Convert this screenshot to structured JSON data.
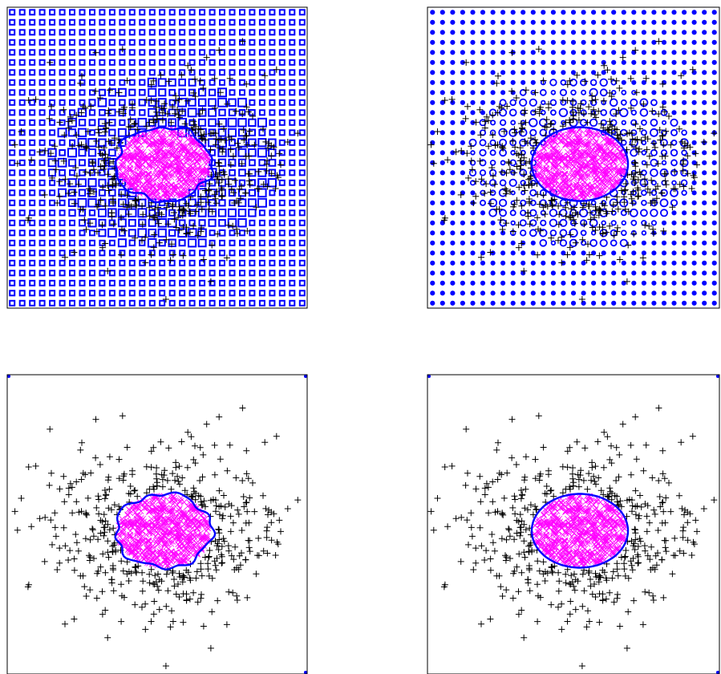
{
  "colors": {
    "frame": "#000000",
    "inner_points": "#ff00ff",
    "outer_points": "#000000",
    "boundary": "#0000ff",
    "grid_markers": "#0000ff",
    "background": "#ffffff"
  },
  "chart_data": [
    {
      "type": "scatter",
      "panel": "top-left",
      "title": "",
      "xlabel": "",
      "ylabel": "",
      "grid": false,
      "marker_grid": {
        "shape": "square",
        "rows": 30,
        "cols": 30,
        "density": "dense"
      },
      "boundary_shape": "irregular-ellipse",
      "series": [
        {
          "marker": "x",
          "color": "#ff00ff",
          "count": 600
        },
        {
          "marker": "+",
          "color": "#000000",
          "count": 420
        }
      ]
    },
    {
      "type": "scatter",
      "panel": "top-right",
      "title": "",
      "xlabel": "",
      "ylabel": "",
      "grid": false,
      "marker_grid": {
        "shape": "circle",
        "rows": 30,
        "cols": 29,
        "density": "sparse"
      },
      "boundary_shape": "ellipse",
      "series": [
        {
          "marker": "x",
          "color": "#ff00ff",
          "count": 600
        },
        {
          "marker": "+",
          "color": "#000000",
          "count": 420
        }
      ]
    },
    {
      "type": "scatter",
      "panel": "bottom-left",
      "title": "",
      "xlabel": "",
      "ylabel": "",
      "grid": false,
      "boundary_shape": "irregular-ellipse",
      "series": [
        {
          "marker": "x",
          "color": "#ff00ff",
          "count": 600
        },
        {
          "marker": "+",
          "color": "#000000",
          "count": 420
        }
      ]
    },
    {
      "type": "scatter",
      "panel": "bottom-right",
      "title": "",
      "xlabel": "",
      "ylabel": "",
      "grid": false,
      "boundary_shape": "ellipse",
      "series": [
        {
          "marker": "x",
          "color": "#ff00ff",
          "count": 600
        },
        {
          "marker": "+",
          "color": "#000000",
          "count": 420
        }
      ]
    }
  ]
}
